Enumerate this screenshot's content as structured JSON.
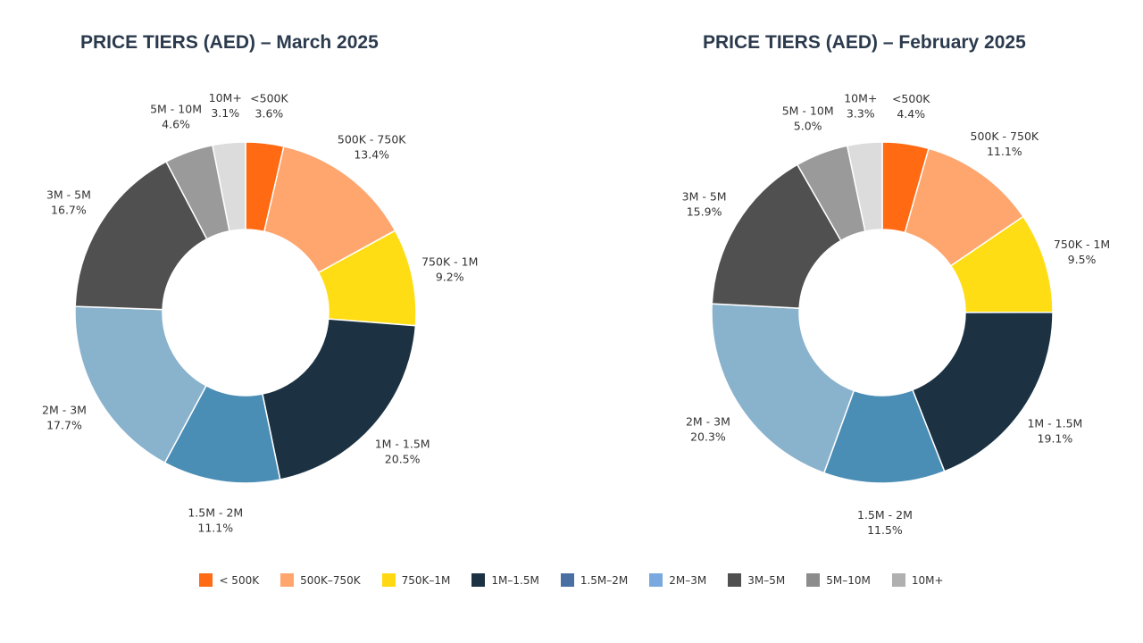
{
  "legend": [
    {
      "label": "< 500K",
      "color": "#ff6a13"
    },
    {
      "label": "500K–750K",
      "color": "#ffa56e"
    },
    {
      "label": "750K–1M",
      "color": "#ffd814"
    },
    {
      "label": "1M–1.5M",
      "color": "#1c3242"
    },
    {
      "label": "1.5M–2M",
      "color": "#4a6fa3"
    },
    {
      "label": "2M–3M",
      "color": "#7aa9e0"
    },
    {
      "label": "3M–5M",
      "color": "#505050"
    },
    {
      "label": "5M–10M",
      "color": "#8c8c8c"
    },
    {
      "label": "10M+",
      "color": "#b0b0b0"
    }
  ],
  "chart_data": [
    {
      "type": "pie",
      "donut": true,
      "title": "PRICE TIERS (AED) – March 2025",
      "slices": [
        {
          "label": "<500K",
          "value": 3.6,
          "value_label": "3.6%",
          "color": "#ff6a13"
        },
        {
          "label": "500K - 750K",
          "value": 13.4,
          "value_label": "13.4%",
          "color": "#ffa56e"
        },
        {
          "label": "750K - 1M",
          "value": 9.2,
          "value_label": "9.2%",
          "color": "#ffdd15"
        },
        {
          "label": "1M - 1.5M",
          "value": 20.5,
          "value_label": "20.5%",
          "color": "#1c3242"
        },
        {
          "label": "1.5M - 2M",
          "value": 11.1,
          "value_label": "11.1%",
          "color": "#4a8db5"
        },
        {
          "label": "2M - 3M",
          "value": 17.7,
          "value_label": "17.7%",
          "color": "#89b2cd"
        },
        {
          "label": "3M - 5M",
          "value": 16.7,
          "value_label": "16.7%",
          "color": "#505050"
        },
        {
          "label": "5M - 10M",
          "value": 4.6,
          "value_label": "4.6%",
          "color": "#9a9a9a"
        },
        {
          "label": "10M+",
          "value": 3.1,
          "value_label": "3.1%",
          "color": "#dcdcdc"
        }
      ]
    },
    {
      "type": "pie",
      "donut": true,
      "title": "PRICE TIERS (AED) – February 2025",
      "slices": [
        {
          "label": "<500K",
          "value": 4.4,
          "value_label": "4.4%",
          "color": "#ff6a13"
        },
        {
          "label": "500K - 750K",
          "value": 11.1,
          "value_label": "11.1%",
          "color": "#ffa56e"
        },
        {
          "label": "750K - 1M",
          "value": 9.5,
          "value_label": "9.5%",
          "color": "#ffdd15"
        },
        {
          "label": "1M - 1.5M",
          "value": 19.1,
          "value_label": "19.1%",
          "color": "#1c3242"
        },
        {
          "label": "1.5M - 2M",
          "value": 11.5,
          "value_label": "11.5%",
          "color": "#4a8db5"
        },
        {
          "label": "2M - 3M",
          "value": 20.3,
          "value_label": "20.3%",
          "color": "#89b2cd"
        },
        {
          "label": "3M - 5M",
          "value": 15.9,
          "value_label": "15.9%",
          "color": "#505050"
        },
        {
          "label": "5M - 10M",
          "value": 5.0,
          "value_label": "5.0%",
          "color": "#9a9a9a"
        },
        {
          "label": "10M+",
          "value": 3.3,
          "value_label": "3.3%",
          "color": "#dcdcdc"
        }
      ]
    }
  ]
}
